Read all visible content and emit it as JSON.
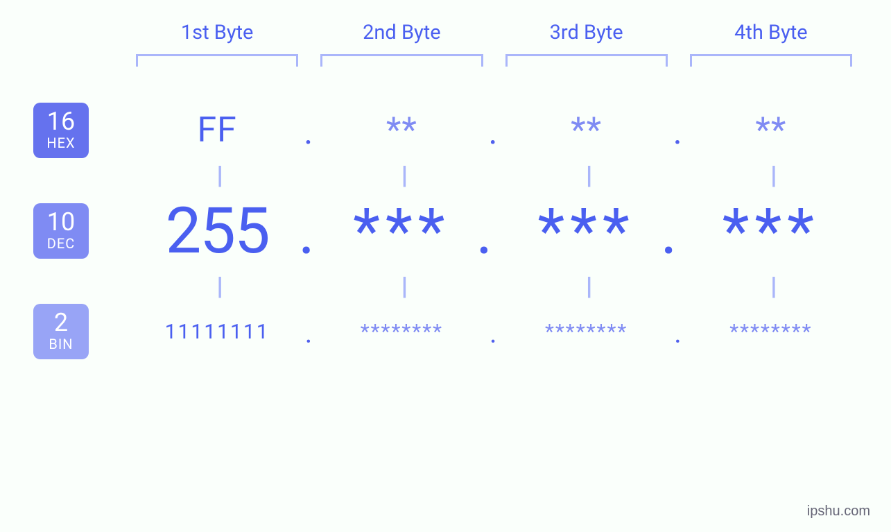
{
  "background_color": "#fafffb",
  "colors": {
    "primary": "#4a5ff0",
    "masked": "#7f8bf3",
    "bracket": "#aab6fa",
    "equals": "#aab6fa",
    "badge_hex_bg": "#6572ee",
    "badge_dec_bg": "#7f8bf3",
    "badge_bin_bg": "#98a4f6",
    "badge_fg": "#ffffff",
    "watermark": "#666677"
  },
  "byte_headers": [
    "1st Byte",
    "2nd Byte",
    "3rd Byte",
    "4th Byte"
  ],
  "fonts": {
    "header_size": 29,
    "hex_size": 50,
    "dec_size": 92,
    "bin_size": 30,
    "equals_size": 36,
    "badge_num_size": 36,
    "badge_txt_size": 20,
    "watermark_size": 20
  },
  "badges": {
    "hex": {
      "num": "16",
      "txt": "HEX"
    },
    "dec": {
      "num": "10",
      "txt": "DEC"
    },
    "bin": {
      "num": "2",
      "txt": "BIN"
    }
  },
  "rows": {
    "hex": {
      "values": [
        "FF",
        "**",
        "**",
        "**"
      ],
      "masked_char": "**"
    },
    "dec": {
      "values": [
        "255",
        "***",
        "***",
        "***"
      ],
      "masked_char": "***"
    },
    "bin": {
      "values": [
        "11111111",
        "********",
        "********",
        "********"
      ],
      "masked_char": "********"
    }
  },
  "equals_glyph": "||",
  "separator": ".",
  "watermark": "ipshu.com"
}
